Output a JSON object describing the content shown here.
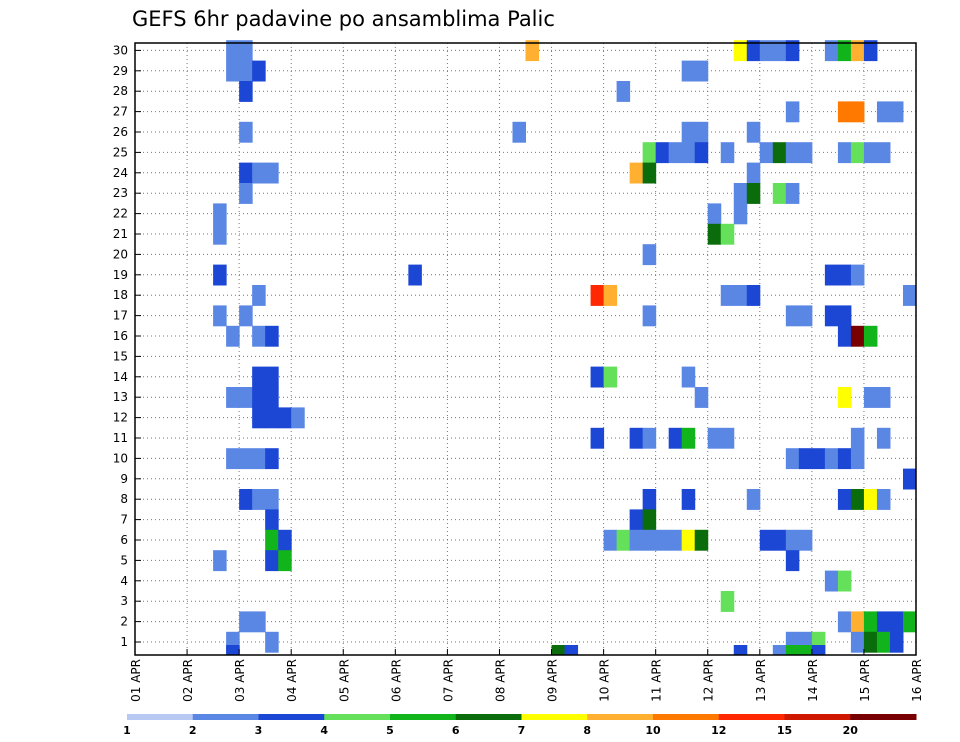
{
  "chart_data": {
    "type": "heatmap",
    "title": "GEFS 6hr padavine po ansamblima Palic",
    "xlabel": "",
    "ylabel": "",
    "x_tick_labels": [
      "01 APR",
      "02 APR",
      "03 APR",
      "04 APR",
      "05 APR",
      "06 APR",
      "07 APR",
      "08 APR",
      "09 APR",
      "10 APR",
      "11 APR",
      "12 APR",
      "13 APR",
      "14 APR",
      "15 APR",
      "16 APR"
    ],
    "x_unit": "6-hour step (0 = 01 APR, 4 steps per day)",
    "xlim": [
      0,
      60
    ],
    "y_tick_labels": [
      "1",
      "2",
      "3",
      "4",
      "5",
      "6",
      "7",
      "8",
      "9",
      "10",
      "11",
      "12",
      "13",
      "14",
      "15",
      "16",
      "17",
      "18",
      "19",
      "20",
      "21",
      "22",
      "23",
      "24",
      "25",
      "26",
      "27",
      "28",
      "29",
      "30"
    ],
    "ylim": [
      0,
      30
    ],
    "grid": true,
    "legend": {
      "position": "bottom",
      "labels": [
        "1",
        "2",
        "3",
        "4",
        "5",
        "6",
        "7",
        "8",
        "10",
        "12",
        "15",
        "20"
      ],
      "colors": [
        "#b8c9f4",
        "#5a87e4",
        "#1c46d4",
        "#64e05a",
        "#12b41c",
        "#0b6c0b",
        "#ffff00",
        "#ffb030",
        "#ff7800",
        "#ff2800",
        "#cf1800",
        "#780000"
      ]
    },
    "cells": [
      [
        7,
        30,
        1
      ],
      [
        8,
        30,
        1
      ],
      [
        30,
        30,
        7
      ],
      [
        46,
        30,
        6
      ],
      [
        47,
        30,
        2
      ],
      [
        48,
        30,
        1
      ],
      [
        49,
        30,
        1
      ],
      [
        50,
        30,
        2
      ],
      [
        53,
        30,
        1
      ],
      [
        54,
        30,
        4
      ],
      [
        55,
        30,
        7
      ],
      [
        56,
        30,
        2
      ],
      [
        7,
        29,
        1
      ],
      [
        8,
        29,
        1
      ],
      [
        9,
        29,
        2
      ],
      [
        42,
        29,
        1
      ],
      [
        43,
        29,
        1
      ],
      [
        8,
        28,
        2
      ],
      [
        37,
        28,
        1
      ],
      [
        50,
        27,
        1
      ],
      [
        54,
        27,
        8
      ],
      [
        55,
        27,
        8
      ],
      [
        57,
        27,
        1
      ],
      [
        58,
        27,
        1
      ],
      [
        8,
        26,
        1
      ],
      [
        29,
        26,
        1
      ],
      [
        42,
        26,
        1
      ],
      [
        43,
        26,
        1
      ],
      [
        47,
        26,
        1
      ],
      [
        39,
        25,
        3
      ],
      [
        40,
        25,
        2
      ],
      [
        41,
        25,
        1
      ],
      [
        42,
        25,
        1
      ],
      [
        43,
        25,
        2
      ],
      [
        45,
        25,
        1
      ],
      [
        48,
        25,
        1
      ],
      [
        49,
        25,
        5
      ],
      [
        50,
        25,
        1
      ],
      [
        51,
        25,
        1
      ],
      [
        54,
        25,
        1
      ],
      [
        55,
        25,
        3
      ],
      [
        56,
        25,
        1
      ],
      [
        57,
        25,
        1
      ],
      [
        8,
        24,
        2
      ],
      [
        9,
        24,
        1
      ],
      [
        10,
        24,
        1
      ],
      [
        38,
        24,
        7
      ],
      [
        39,
        24,
        5
      ],
      [
        47,
        24,
        1
      ],
      [
        8,
        23,
        1
      ],
      [
        46,
        23,
        1
      ],
      [
        47,
        23,
        5
      ],
      [
        49,
        23,
        3
      ],
      [
        50,
        23,
        1
      ],
      [
        6,
        22,
        1
      ],
      [
        44,
        22,
        1
      ],
      [
        46,
        22,
        1
      ],
      [
        6,
        21,
        1
      ],
      [
        44,
        21,
        5
      ],
      [
        45,
        21,
        3
      ],
      [
        39,
        20,
        1
      ],
      [
        6,
        19,
        2
      ],
      [
        21,
        19,
        2
      ],
      [
        53,
        19,
        2
      ],
      [
        54,
        19,
        2
      ],
      [
        55,
        19,
        1
      ],
      [
        9,
        18,
        1
      ],
      [
        35,
        18,
        9
      ],
      [
        36,
        18,
        7
      ],
      [
        45,
        18,
        1
      ],
      [
        46,
        18,
        1
      ],
      [
        47,
        18,
        2
      ],
      [
        59,
        18,
        1
      ],
      [
        6,
        17,
        1
      ],
      [
        8,
        17,
        1
      ],
      [
        39,
        17,
        1
      ],
      [
        50,
        17,
        1
      ],
      [
        51,
        17,
        1
      ],
      [
        53,
        17,
        2
      ],
      [
        54,
        17,
        2
      ],
      [
        7,
        16,
        1
      ],
      [
        9,
        16,
        1
      ],
      [
        10,
        16,
        2
      ],
      [
        54,
        16,
        2
      ],
      [
        55,
        16,
        11
      ],
      [
        56,
        16,
        4
      ],
      [
        9,
        14,
        2
      ],
      [
        10,
        14,
        2
      ],
      [
        35,
        14,
        2
      ],
      [
        36,
        14,
        3
      ],
      [
        42,
        14,
        1
      ],
      [
        7,
        13,
        1
      ],
      [
        8,
        13,
        1
      ],
      [
        9,
        13,
        2
      ],
      [
        10,
        13,
        2
      ],
      [
        43,
        13,
        1
      ],
      [
        54,
        13,
        6
      ],
      [
        56,
        13,
        1
      ],
      [
        57,
        13,
        1
      ],
      [
        9,
        12,
        2
      ],
      [
        10,
        12,
        2
      ],
      [
        11,
        12,
        2
      ],
      [
        12,
        12,
        1
      ],
      [
        35,
        11,
        2
      ],
      [
        38,
        11,
        2
      ],
      [
        39,
        11,
        1
      ],
      [
        41,
        11,
        2
      ],
      [
        42,
        11,
        4
      ],
      [
        44,
        11,
        1
      ],
      [
        45,
        11,
        1
      ],
      [
        55,
        11,
        1
      ],
      [
        57,
        11,
        1
      ],
      [
        7,
        10,
        1
      ],
      [
        8,
        10,
        1
      ],
      [
        9,
        10,
        1
      ],
      [
        10,
        10,
        2
      ],
      [
        50,
        10,
        1
      ],
      [
        51,
        10,
        2
      ],
      [
        52,
        10,
        2
      ],
      [
        53,
        10,
        1
      ],
      [
        54,
        10,
        2
      ],
      [
        55,
        10,
        1
      ],
      [
        59,
        9,
        2
      ],
      [
        8,
        8,
        2
      ],
      [
        9,
        8,
        1
      ],
      [
        10,
        8,
        1
      ],
      [
        39,
        8,
        2
      ],
      [
        42,
        8,
        2
      ],
      [
        47,
        8,
        1
      ],
      [
        54,
        8,
        2
      ],
      [
        55,
        8,
        5
      ],
      [
        56,
        8,
        6
      ],
      [
        57,
        8,
        1
      ],
      [
        10,
        7,
        2
      ],
      [
        38,
        7,
        2
      ],
      [
        39,
        7,
        5
      ],
      [
        10,
        6,
        4
      ],
      [
        11,
        6,
        2
      ],
      [
        36,
        6,
        1
      ],
      [
        37,
        6,
        3
      ],
      [
        38,
        6,
        1
      ],
      [
        39,
        6,
        1
      ],
      [
        40,
        6,
        1
      ],
      [
        41,
        6,
        1
      ],
      [
        42,
        6,
        6
      ],
      [
        43,
        6,
        5
      ],
      [
        48,
        6,
        2
      ],
      [
        49,
        6,
        2
      ],
      [
        50,
        6,
        1
      ],
      [
        51,
        6,
        1
      ],
      [
        6,
        5,
        1
      ],
      [
        10,
        5,
        2
      ],
      [
        11,
        5,
        4
      ],
      [
        50,
        5,
        2
      ],
      [
        53,
        4,
        1
      ],
      [
        54,
        4,
        3
      ],
      [
        45,
        3,
        3
      ],
      [
        8,
        2,
        1
      ],
      [
        9,
        2,
        1
      ],
      [
        54,
        2,
        1
      ],
      [
        55,
        2,
        7
      ],
      [
        56,
        2,
        4
      ],
      [
        57,
        2,
        2
      ],
      [
        58,
        2,
        2
      ],
      [
        59,
        2,
        4
      ],
      [
        7,
        1,
        1
      ],
      [
        10,
        1,
        1
      ],
      [
        50,
        1,
        1
      ],
      [
        51,
        1,
        1
      ],
      [
        52,
        1,
        3
      ],
      [
        55,
        1,
        1
      ],
      [
        56,
        1,
        5
      ],
      [
        57,
        1,
        4
      ],
      [
        58,
        1,
        2
      ]
    ],
    "bottom_partial_cells": [
      [
        7,
        2
      ],
      [
        32,
        5
      ],
      [
        33,
        2
      ],
      [
        46,
        2
      ],
      [
        49,
        1
      ],
      [
        50,
        4
      ],
      [
        51,
        4
      ],
      [
        52,
        2
      ]
    ]
  }
}
